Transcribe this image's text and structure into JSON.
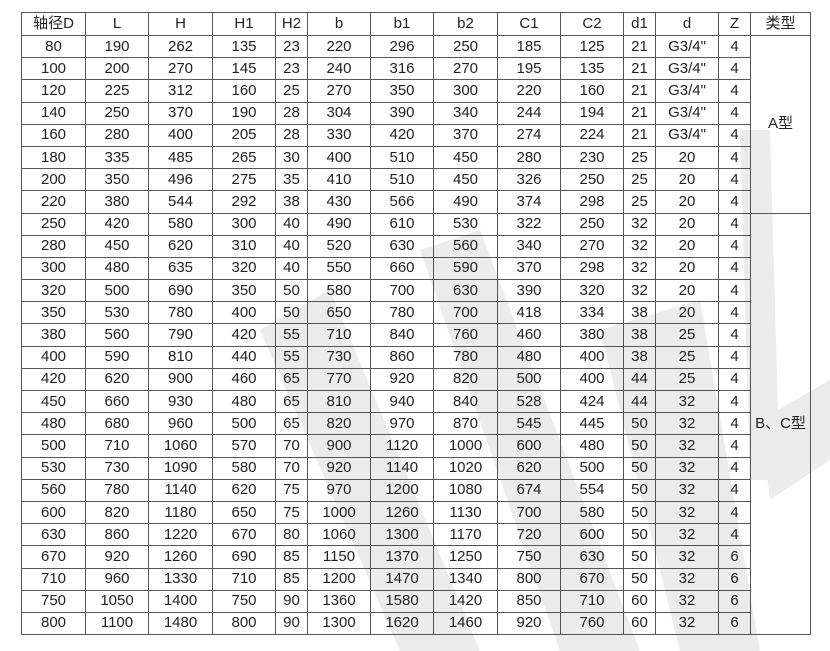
{
  "headers": [
    "轴径D",
    "L",
    "H",
    "H1",
    "H2",
    "b",
    "b1",
    "b2",
    "C1",
    "C2",
    "d1",
    "d",
    "Z",
    "类型"
  ],
  "groups": [
    {
      "type": "A型",
      "rows": [
        [
          "80",
          "190",
          "262",
          "135",
          "23",
          "220",
          "296",
          "250",
          "185",
          "125",
          "21",
          "G3/4\"",
          "4"
        ],
        [
          "100",
          "200",
          "270",
          "145",
          "23",
          "240",
          "316",
          "270",
          "195",
          "135",
          "21",
          "G3/4\"",
          "4"
        ],
        [
          "120",
          "225",
          "312",
          "160",
          "25",
          "270",
          "350",
          "300",
          "220",
          "160",
          "21",
          "G3/4\"",
          "4"
        ],
        [
          "140",
          "250",
          "370",
          "190",
          "28",
          "304",
          "390",
          "340",
          "244",
          "194",
          "21",
          "G3/4\"",
          "4"
        ],
        [
          "160",
          "280",
          "400",
          "205",
          "28",
          "330",
          "420",
          "370",
          "274",
          "224",
          "21",
          "G3/4\"",
          "4"
        ],
        [
          "180",
          "335",
          "485",
          "265",
          "30",
          "400",
          "510",
          "450",
          "280",
          "230",
          "25",
          "20",
          "4"
        ],
        [
          "200",
          "350",
          "496",
          "275",
          "35",
          "410",
          "510",
          "450",
          "326",
          "250",
          "25",
          "20",
          "4"
        ],
        [
          "220",
          "380",
          "544",
          "292",
          "38",
          "430",
          "566",
          "490",
          "374",
          "298",
          "25",
          "20",
          "4"
        ]
      ]
    },
    {
      "type": "B、C型",
      "rows": [
        [
          "250",
          "420",
          "580",
          "300",
          "40",
          "490",
          "610",
          "530",
          "322",
          "250",
          "32",
          "20",
          "4"
        ],
        [
          "280",
          "450",
          "620",
          "310",
          "40",
          "520",
          "630",
          "560",
          "340",
          "270",
          "32",
          "20",
          "4"
        ],
        [
          "300",
          "480",
          "635",
          "320",
          "40",
          "550",
          "660",
          "590",
          "370",
          "298",
          "32",
          "20",
          "4"
        ],
        [
          "320",
          "500",
          "690",
          "350",
          "50",
          "580",
          "700",
          "630",
          "390",
          "320",
          "32",
          "20",
          "4"
        ],
        [
          "350",
          "530",
          "780",
          "400",
          "50",
          "650",
          "780",
          "700",
          "418",
          "334",
          "38",
          "20",
          "4"
        ],
        [
          "380",
          "560",
          "790",
          "420",
          "55",
          "710",
          "840",
          "760",
          "460",
          "380",
          "38",
          "25",
          "4"
        ],
        [
          "400",
          "590",
          "810",
          "440",
          "55",
          "730",
          "860",
          "780",
          "480",
          "400",
          "38",
          "25",
          "4"
        ],
        [
          "420",
          "620",
          "900",
          "460",
          "65",
          "770",
          "920",
          "820",
          "500",
          "400",
          "44",
          "25",
          "4"
        ],
        [
          "450",
          "660",
          "930",
          "480",
          "65",
          "810",
          "940",
          "840",
          "528",
          "424",
          "44",
          "32",
          "4"
        ],
        [
          "480",
          "680",
          "960",
          "500",
          "65",
          "820",
          "970",
          "870",
          "545",
          "445",
          "50",
          "32",
          "4"
        ],
        [
          "500",
          "710",
          "1060",
          "570",
          "70",
          "900",
          "1120",
          "1000",
          "600",
          "480",
          "50",
          "32",
          "4"
        ],
        [
          "530",
          "730",
          "1090",
          "580",
          "70",
          "920",
          "1140",
          "1020",
          "620",
          "500",
          "50",
          "32",
          "4"
        ],
        [
          "560",
          "780",
          "1140",
          "620",
          "75",
          "970",
          "1200",
          "1080",
          "674",
          "554",
          "50",
          "32",
          "4"
        ],
        [
          "600",
          "820",
          "1180",
          "650",
          "75",
          "1000",
          "1260",
          "1130",
          "700",
          "580",
          "50",
          "32",
          "4"
        ],
        [
          "630",
          "860",
          "1220",
          "670",
          "80",
          "1060",
          "1300",
          "1170",
          "720",
          "600",
          "50",
          "32",
          "4"
        ],
        [
          "670",
          "920",
          "1260",
          "690",
          "85",
          "1150",
          "1370",
          "1250",
          "750",
          "630",
          "50",
          "32",
          "6"
        ],
        [
          "710",
          "960",
          "1330",
          "710",
          "85",
          "1200",
          "1470",
          "1340",
          "800",
          "670",
          "50",
          "32",
          "6"
        ],
        [
          "750",
          "1050",
          "1400",
          "750",
          "90",
          "1360",
          "1580",
          "1420",
          "850",
          "710",
          "60",
          "32",
          "6"
        ],
        [
          "800",
          "1100",
          "1480",
          "800",
          "90",
          "1300",
          "1620",
          "1460",
          "920",
          "760",
          "60",
          "32",
          "6"
        ]
      ]
    }
  ]
}
